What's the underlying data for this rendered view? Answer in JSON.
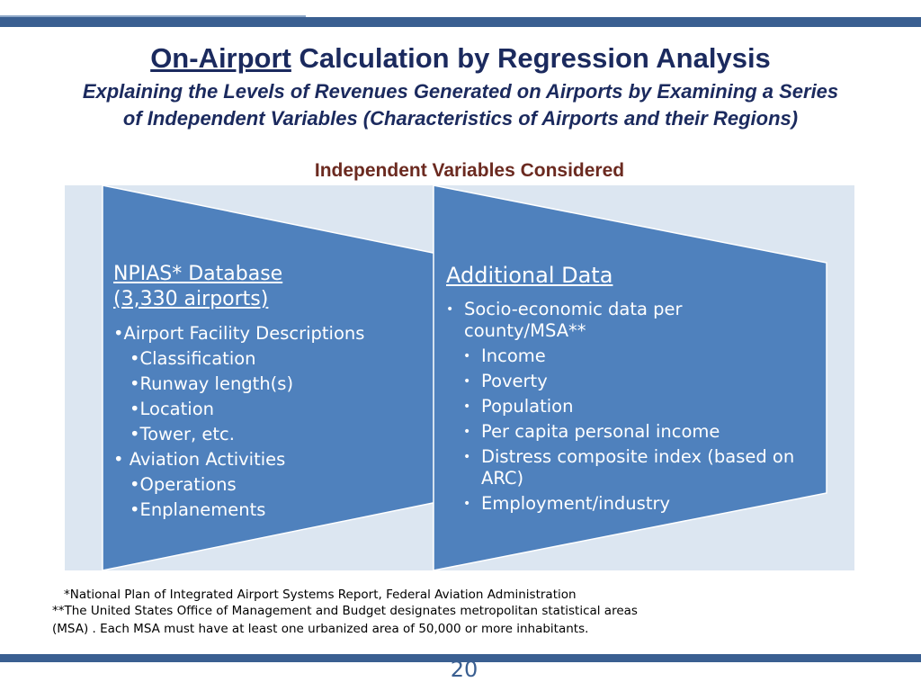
{
  "slide": {
    "title_underlined": "On-Airport",
    "title_rest": " Calculation by Regression Analysis",
    "subtitle_line1": "Explaining the Levels of  Revenues Generated on Airports by Examining a Series",
    "subtitle_line2": "of Independent Variables (Characteristics of Airports and their Regions)",
    "section_heading": "Independent Variables Considered",
    "page_number": "20"
  },
  "left_column": {
    "heading_line1": "NPIAS* Database",
    "heading_line2": "(3,330 airports)",
    "items": [
      {
        "text": "•Airport Facility Descriptions",
        "indent": 0
      },
      {
        "text": "•Classification",
        "indent": 1
      },
      {
        "text": "•Runway length(s)",
        "indent": 1
      },
      {
        "text": "•Location",
        "indent": 1
      },
      {
        "text": "•Tower, etc.",
        "indent": 1
      },
      {
        "text": "• Aviation Activities",
        "indent": 0
      },
      {
        "text": "•Operations",
        "indent": 1
      },
      {
        "text": "•Enplanements",
        "indent": 1
      }
    ]
  },
  "right_column": {
    "heading": "Additional Data",
    "bullet": "•",
    "items": [
      {
        "text": "Socio-economic data per county/MSA**",
        "indent": 0
      },
      {
        "text": "Income",
        "indent": 1
      },
      {
        "text": "Poverty",
        "indent": 1
      },
      {
        "text": "Population",
        "indent": 1
      },
      {
        "text": "Per capita personal income",
        "indent": 1
      },
      {
        "text": "Distress composite index (based on ARC)",
        "indent": 1
      },
      {
        "text": "Employment/industry",
        "indent": 1
      }
    ]
  },
  "footnotes": {
    "line1": "*National Plan of Integrated Airport Systems Report, Federal Aviation Administration",
    "line2": "**The United States Office of Management and Budget designates metropolitan statistical areas",
    "line3": "(MSA) . Each MSA must have at least one urbanized area of 50,000 or more inhabitants."
  },
  "colors": {
    "shape_fill": "#4f81bd",
    "shape_stroke": "#ffffff",
    "panel_bg": "#dce6f1",
    "title": "#1b2a5e",
    "heading": "#6b2a20",
    "bar": "#3a5f91"
  }
}
